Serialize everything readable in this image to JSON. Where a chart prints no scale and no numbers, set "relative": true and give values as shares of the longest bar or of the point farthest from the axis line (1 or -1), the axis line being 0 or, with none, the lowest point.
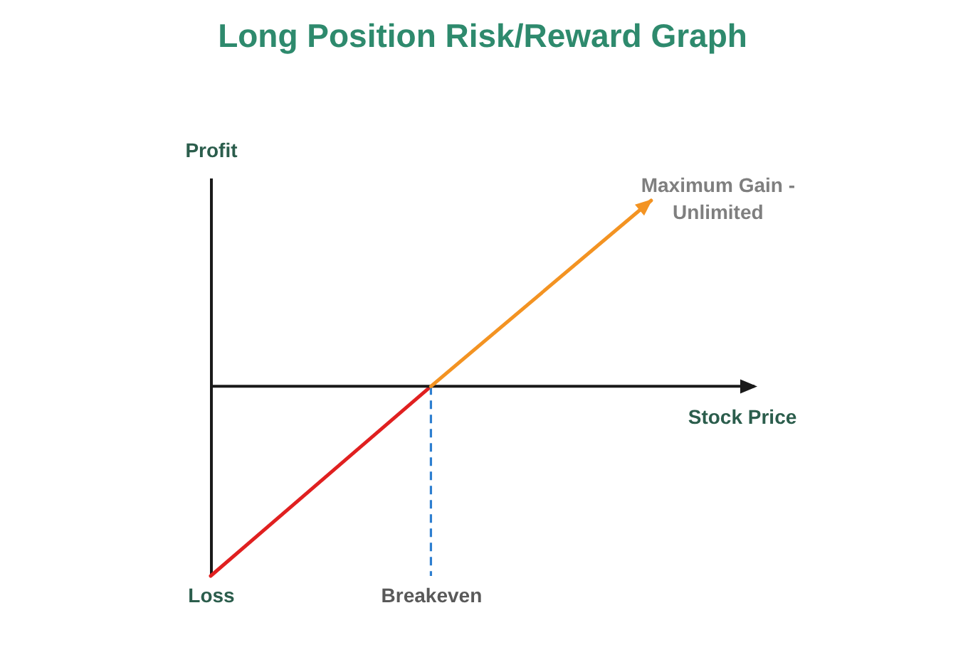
{
  "chart_data": {
    "type": "line",
    "title": "Long Position Risk/Reward Graph",
    "xlabel": "Stock Price",
    "ylabel": "Profit",
    "categories": [
      "Loss",
      "Breakeven",
      null
    ],
    "relative": true,
    "series": [
      {
        "color": "#e02020",
        "values": [
          -1,
          0,
          null
        ]
      },
      {
        "color": "#f39322",
        "values": [
          null,
          0,
          0.98
        ]
      }
    ],
    "ref_lines": [
      {
        "axis": "x",
        "value": "Breakeven",
        "color": "#2e7fd0",
        "line_style": "dashed"
      }
    ],
    "annotations": [
      "Maximum Gain - Unlimited"
    ],
    "grid": false,
    "legend": false,
    "marker": "none",
    "line_style": "solid"
  }
}
